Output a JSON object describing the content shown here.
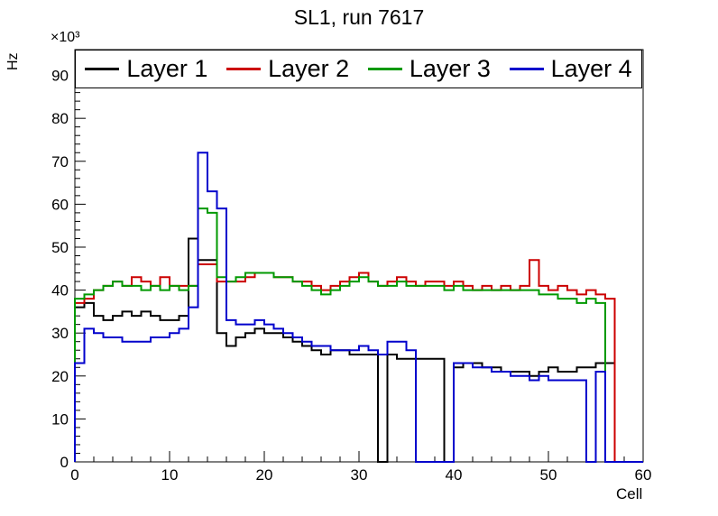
{
  "title": "SL1, run 7617",
  "axes": {
    "x_label": "Cell",
    "y_label": "Hz",
    "y_multiplier": "×10³",
    "x_ticks": [
      0,
      10,
      20,
      30,
      40,
      50,
      60
    ],
    "y_ticks": [
      0,
      10,
      20,
      30,
      40,
      50,
      60,
      70,
      80,
      90
    ]
  },
  "legend": [
    {
      "label": "Layer 1",
      "color": "#000000"
    },
    {
      "label": "Layer 2",
      "color": "#cc0000"
    },
    {
      "label": "Layer 3",
      "color": "#009900"
    },
    {
      "label": "Layer 4",
      "color": "#0000cc"
    }
  ],
  "chart_data": {
    "type": "line",
    "style": "step-histogram",
    "title": "SL1, run 7617",
    "xlabel": "Cell",
    "ylabel": "Hz",
    "y_unit_multiplier": 1000,
    "xlim": [
      0,
      60
    ],
    "ylim": [
      0,
      96
    ],
    "bin_width": 1,
    "legend_position": "top-inside",
    "grid": false,
    "series": [
      {
        "name": "Layer 1",
        "color": "#000000",
        "values": [
          36,
          37,
          34,
          33,
          34,
          35,
          34,
          35,
          34,
          33,
          33,
          34,
          52,
          47,
          47,
          30,
          27,
          29,
          30,
          31,
          30,
          30,
          29,
          28,
          27,
          26,
          25,
          26,
          26,
          25,
          25,
          25,
          0,
          25,
          24,
          24,
          24,
          24,
          24,
          0,
          22,
          23,
          23,
          22,
          22,
          21,
          21,
          21,
          20,
          21,
          22,
          21,
          21,
          22,
          22,
          23,
          23,
          0,
          0,
          0
        ]
      },
      {
        "name": "Layer 2",
        "color": "#cc0000",
        "values": [
          37,
          38,
          40,
          41,
          42,
          41,
          43,
          42,
          41,
          43,
          41,
          41,
          41,
          46,
          46,
          42,
          42,
          42,
          43,
          44,
          44,
          43,
          43,
          42,
          42,
          41,
          40,
          41,
          42,
          43,
          44,
          42,
          41,
          42,
          43,
          42,
          41,
          42,
          42,
          41,
          42,
          41,
          40,
          41,
          40,
          41,
          40,
          41,
          47,
          41,
          40,
          41,
          40,
          39,
          40,
          39,
          38,
          0,
          0,
          0
        ]
      },
      {
        "name": "Layer 3",
        "color": "#009900",
        "values": [
          38,
          39,
          40,
          41,
          42,
          41,
          41,
          40,
          41,
          40,
          41,
          40,
          41,
          59,
          58,
          43,
          42,
          43,
          44,
          44,
          44,
          43,
          43,
          42,
          41,
          40,
          39,
          40,
          41,
          42,
          43,
          42,
          41,
          41,
          42,
          41,
          41,
          41,
          41,
          40,
          41,
          40,
          40,
          40,
          40,
          40,
          40,
          40,
          40,
          39,
          39,
          38,
          38,
          37,
          38,
          37,
          0,
          0,
          0,
          0
        ]
      },
      {
        "name": "Layer 4",
        "color": "#0000cc",
        "values": [
          23,
          31,
          30,
          29,
          29,
          28,
          28,
          28,
          29,
          29,
          30,
          31,
          36,
          72,
          63,
          59,
          33,
          32,
          32,
          33,
          32,
          31,
          30,
          29,
          28,
          27,
          27,
          26,
          26,
          26,
          27,
          26,
          25,
          28,
          28,
          26,
          0,
          0,
          0,
          0,
          23,
          23,
          22,
          22,
          21,
          21,
          20,
          20,
          19,
          20,
          19,
          19,
          19,
          19,
          0,
          21,
          0,
          0,
          0,
          0
        ]
      }
    ]
  }
}
